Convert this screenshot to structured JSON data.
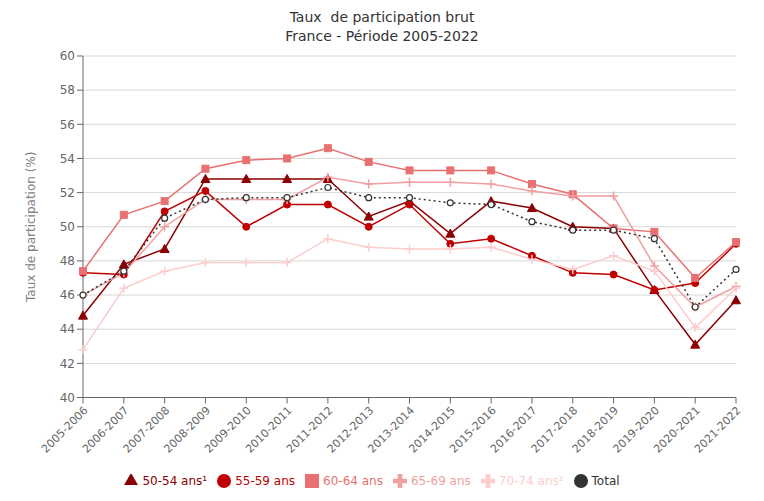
{
  "chart_data": {
    "type": "line",
    "title": "Taux  de participation brut\nFrance - Période 2005-2022",
    "y_label": "Taux de participation (%)",
    "categories": [
      "2005-2006",
      "2006-2007",
      "2007-2008",
      "2008-2009",
      "2009-2010",
      "2010-2011",
      "2011-2012",
      "2012-2013",
      "2013-2014",
      "2014-2015",
      "2015-2016",
      "2016-2017",
      "2017-2018",
      "2018-2019",
      "2019-2020",
      "2020-2021",
      "2021-2022"
    ],
    "series": [
      {
        "name": "50-54 ans¹",
        "color": "#8B0000",
        "marker": "triangle",
        "line_style": "solid",
        "values": [
          44.8,
          47.8,
          48.7,
          52.8,
          52.8,
          52.8,
          52.8,
          50.6,
          51.5,
          49.6,
          51.5,
          51.1,
          50.0,
          49.9,
          46.3,
          43.1,
          45.7
        ]
      },
      {
        "name": "55-59 ans",
        "color": "#C00000",
        "marker": "circle",
        "line_style": "solid",
        "values": [
          47.3,
          47.2,
          50.9,
          52.1,
          50.0,
          51.3,
          51.3,
          50.0,
          51.3,
          49.0,
          49.3,
          48.3,
          47.3,
          47.2,
          46.3,
          46.7,
          49.0
        ]
      },
      {
        "name": "60-64 ans",
        "color": "#E87070",
        "marker": "square",
        "line_style": "solid",
        "values": [
          47.4,
          50.7,
          51.5,
          53.4,
          53.9,
          54.0,
          54.6,
          53.8,
          53.3,
          53.3,
          53.3,
          52.5,
          51.9,
          49.9,
          49.7,
          47.0,
          49.1
        ]
      },
      {
        "name": "65-69 ans",
        "color": "#F0A0A0",
        "marker": "plus",
        "line_style": "solid",
        "values": [
          46.0,
          47.3,
          50.0,
          51.6,
          51.6,
          51.6,
          52.9,
          52.5,
          52.6,
          52.6,
          52.5,
          52.1,
          51.8,
          51.8,
          47.7,
          45.3,
          46.5
        ]
      },
      {
        "name": "70-74 ans²",
        "color": "#FFCCCC",
        "marker": "plus",
        "line_style": "solid",
        "values": [
          42.8,
          46.4,
          47.4,
          47.9,
          47.9,
          47.9,
          49.3,
          48.8,
          48.7,
          48.7,
          48.8,
          48.1,
          47.5,
          48.3,
          47.4,
          44.1,
          46.4
        ]
      },
      {
        "name": "Total",
        "color": "#333333",
        "marker": "open_circle",
        "line_style": "dotted",
        "values": [
          46.0,
          47.4,
          50.5,
          51.6,
          51.7,
          51.7,
          52.3,
          51.7,
          51.7,
          51.4,
          51.3,
          50.3,
          49.8,
          49.8,
          49.3,
          45.3,
          47.5
        ]
      }
    ],
    "ylim": [
      40,
      60
    ],
    "yticks": [
      40,
      42,
      44,
      46,
      48,
      50,
      52,
      54,
      56,
      58,
      60
    ],
    "grid": true,
    "legend": "bottom"
  }
}
